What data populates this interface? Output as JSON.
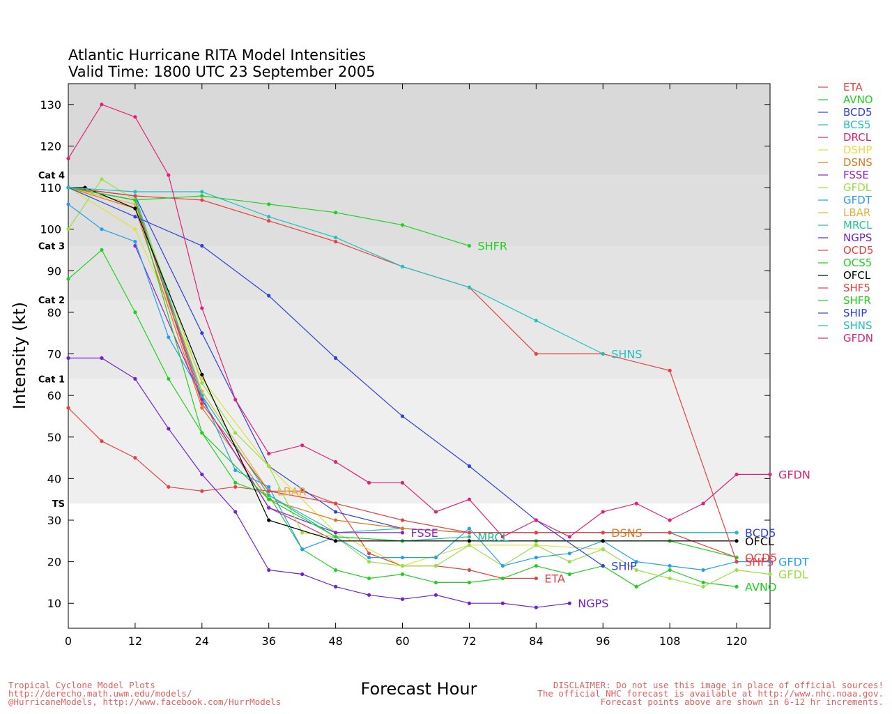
{
  "chart_data": {
    "type": "line",
    "title": "Atlantic Hurricane RITA Model Intensities",
    "subtitle": "Valid Time: 1800 UTC 23 September 2005",
    "xlabel": "Forecast Hour",
    "ylabel": "Intensity (kt)",
    "xlim": [
      0,
      126
    ],
    "ylim": [
      4,
      135
    ],
    "x_ticks": [
      0,
      12,
      24,
      36,
      48,
      60,
      72,
      84,
      96,
      108,
      120
    ],
    "y_ticks": [
      10,
      20,
      30,
      40,
      50,
      60,
      70,
      80,
      90,
      100,
      110,
      120,
      130
    ],
    "grid": false,
    "legend_position": "right",
    "bands": [
      {
        "from": 34,
        "to": 64,
        "color": "#efefef"
      },
      {
        "from": 64,
        "to": 83,
        "color": "#e8e8e8"
      },
      {
        "from": 83,
        "to": 96,
        "color": "#e3e3e3"
      },
      {
        "from": 96,
        "to": 113,
        "color": "#dedede"
      },
      {
        "from": 113,
        "to": 135,
        "color": "#d9d9d9"
      }
    ],
    "category_labels": [
      {
        "text": "TS",
        "value": 34
      },
      {
        "text": "Cat 1",
        "value": 64
      },
      {
        "text": "Cat 2",
        "value": 83
      },
      {
        "text": "Cat 3",
        "value": 96
      },
      {
        "text": "Cat 4",
        "value": 113
      }
    ],
    "series": [
      {
        "name": "ETA",
        "color": "#e84040",
        "end_label": "ETA",
        "x": [
          0,
          6,
          12,
          18,
          24,
          30,
          36,
          42,
          48,
          54,
          60,
          66,
          72,
          78,
          84
        ],
        "y": [
          57,
          49,
          45,
          38,
          37,
          38,
          37,
          37,
          34,
          22,
          19,
          19,
          18,
          16,
          16
        ]
      },
      {
        "name": "AVNO",
        "color": "#20d020",
        "end_label": "AVNO",
        "x": [
          0,
          6,
          12,
          18,
          24,
          30,
          36,
          42,
          48,
          54,
          60,
          66,
          72,
          78,
          84,
          90,
          96,
          102,
          108,
          114,
          120
        ],
        "y": [
          88,
          95,
          80,
          64,
          51,
          39,
          36,
          23,
          18,
          16,
          17,
          15,
          15,
          16,
          19,
          17,
          19,
          14,
          18,
          15,
          14
        ]
      },
      {
        "name": "BCD5",
        "color": "#2a40e0",
        "end_label": "BCD5",
        "x": [
          0,
          12,
          24,
          36,
          48,
          60,
          72,
          84,
          96,
          108,
          120
        ],
        "y": [
          110,
          108,
          75,
          43,
          32,
          28,
          27,
          27,
          27,
          27,
          27
        ]
      },
      {
        "name": "BCS5",
        "color": "#20c0c0",
        "end_label": "",
        "x": [
          0,
          12,
          24,
          36,
          48,
          60,
          72,
          84,
          96,
          108,
          120
        ],
        "y": [
          110,
          108,
          60,
          36,
          27,
          28,
          27,
          27,
          27,
          27,
          27
        ]
      },
      {
        "name": "DRCL",
        "color": "#e0207a",
        "end_label": "",
        "x": [
          0,
          12,
          24,
          36,
          48,
          60,
          72,
          84,
          96,
          108,
          120
        ],
        "y": [
          110,
          107,
          59,
          33,
          25,
          25,
          25,
          25,
          25,
          25,
          25
        ]
      },
      {
        "name": "DSHP",
        "color": "#e0e040",
        "end_label": "",
        "x": [
          0,
          12,
          24,
          36,
          48,
          60,
          72,
          84,
          96
        ],
        "y": [
          110,
          100,
          64,
          43,
          27,
          19,
          24,
          24,
          23
        ]
      },
      {
        "name": "DSNS",
        "color": "#e07820",
        "end_label": "DSNS",
        "x": [
          0,
          12,
          24,
          36,
          48,
          60,
          72,
          84,
          96
        ],
        "y": [
          110,
          105,
          57,
          35,
          30,
          28,
          27,
          27,
          27
        ]
      },
      {
        "name": "FSSE",
        "color": "#9020d0",
        "end_label": "FSSE",
        "x": [
          12,
          24,
          36,
          48,
          60
        ],
        "y": [
          96,
          59,
          33,
          27,
          27
        ]
      },
      {
        "name": "GFDL",
        "color": "#98e040",
        "end_label": "GFDL",
        "x": [
          0,
          6,
          12,
          18,
          24,
          30,
          36,
          42,
          48,
          54,
          60,
          66,
          72,
          78,
          84,
          90,
          96,
          102,
          108,
          114,
          120,
          126
        ],
        "y": [
          100,
          112,
          107,
          85,
          63,
          51,
          43,
          27,
          26,
          20,
          19,
          19,
          24,
          19,
          24,
          20,
          23,
          18,
          16,
          14,
          18,
          17
        ]
      },
      {
        "name": "GFDT",
        "color": "#20a0f0",
        "end_label": "GFDT",
        "x": [
          0,
          6,
          12,
          18,
          24,
          30,
          36,
          42,
          48,
          54,
          60,
          66,
          72,
          78,
          84,
          90,
          96,
          102,
          108,
          114,
          120,
          126
        ],
        "y": [
          106,
          100,
          97,
          74,
          60,
          42,
          38,
          23,
          26,
          21,
          21,
          21,
          28,
          19,
          21,
          22,
          25,
          20,
          19,
          18,
          20,
          20
        ]
      },
      {
        "name": "LBAR",
        "color": "#e8b040",
        "end_label": "LBAR",
        "x": [
          0,
          12,
          24,
          36
        ],
        "y": [
          110,
          106,
          61,
          37
        ]
      },
      {
        "name": "MRCL",
        "color": "#20c090",
        "end_label": "MRCL",
        "x": [
          0,
          12,
          24,
          36,
          48,
          60,
          72
        ],
        "y": [
          110,
          107,
          60,
          36,
          26,
          25,
          26
        ]
      },
      {
        "name": "NGPS",
        "color": "#7020d0",
        "end_label": "NGPS",
        "x": [
          0,
          6,
          12,
          18,
          24,
          30,
          36,
          42,
          48,
          54,
          60,
          66,
          72,
          78,
          84,
          90
        ],
        "y": [
          69,
          69,
          64,
          52,
          41,
          32,
          18,
          17,
          14,
          12,
          11,
          12,
          10,
          10,
          9,
          10
        ]
      },
      {
        "name": "OCD5",
        "color": "#e84040",
        "end_label": "OCD5",
        "x": [
          0,
          12,
          24,
          36,
          48,
          60,
          72,
          84,
          96,
          108,
          120
        ],
        "y": [
          110,
          107,
          58,
          37,
          34,
          30,
          27,
          27,
          27,
          27,
          21
        ]
      },
      {
        "name": "OCS5",
        "color": "#20d020",
        "end_label": "",
        "x": [
          0,
          12,
          24,
          36,
          48,
          60,
          72,
          84,
          96,
          108,
          120
        ],
        "y": [
          110,
          107,
          51,
          35,
          26,
          25,
          25,
          25,
          25,
          25,
          21
        ]
      },
      {
        "name": "OFCL",
        "color": "#000000",
        "end_label": "OFCL",
        "x": [
          0,
          3,
          12,
          24,
          36,
          48,
          72,
          96,
          120
        ],
        "y": [
          110,
          110,
          105,
          65,
          30,
          25,
          25,
          25,
          25
        ]
      },
      {
        "name": "SHF5",
        "color": "#e84040",
        "end_label": "SHF5",
        "x": [
          0,
          12,
          24,
          36,
          48,
          60,
          72,
          84,
          96,
          108,
          120
        ],
        "y": [
          110,
          108,
          107,
          102,
          97,
          91,
          86,
          70,
          70,
          66,
          20
        ]
      },
      {
        "name": "SHFR",
        "color": "#20d020",
        "end_label": "SHFR",
        "x": [
          0,
          12,
          24,
          36,
          48,
          60,
          72
        ],
        "y": [
          110,
          107,
          108,
          106,
          104,
          101,
          96
        ]
      },
      {
        "name": "SHIP",
        "color": "#2a40e0",
        "end_label": "SHIP",
        "x": [
          0,
          12,
          24,
          36,
          48,
          60,
          72,
          84,
          96
        ],
        "y": [
          110,
          103,
          96,
          84,
          69,
          55,
          43,
          30,
          19
        ]
      },
      {
        "name": "SHNS",
        "color": "#20c0c0",
        "end_label": "SHNS",
        "x": [
          0,
          12,
          24,
          36,
          48,
          60,
          72,
          84,
          96
        ],
        "y": [
          110,
          109,
          109,
          103,
          98,
          91,
          86,
          78,
          70
        ]
      },
      {
        "name": "GFDN",
        "color": "#e0207a",
        "end_label": "GFDN",
        "x": [
          0,
          6,
          12,
          18,
          24,
          30,
          36,
          42,
          48,
          54,
          60,
          66,
          72,
          78,
          84,
          90,
          96,
          102,
          108,
          114,
          120,
          126
        ],
        "y": [
          117,
          130,
          127,
          113,
          81,
          59,
          46,
          48,
          44,
          39,
          39,
          32,
          35,
          26,
          30,
          26,
          32,
          34,
          30,
          34,
          41,
          41
        ]
      }
    ]
  },
  "footer": {
    "left": [
      "Tropical Cyclone Model Plots",
      "http://derecho.math.uwm.edu/models/",
      "@HurricaneModels, http://www.facebook.com/HurrModels"
    ],
    "right": [
      "DISCLAIMER: Do not use this image in place of official sources!",
      "The official NHC forecast is available at http://www.nhc.noaa.gov.",
      "Forecast points above are shown in 6-12 hr increments."
    ]
  }
}
